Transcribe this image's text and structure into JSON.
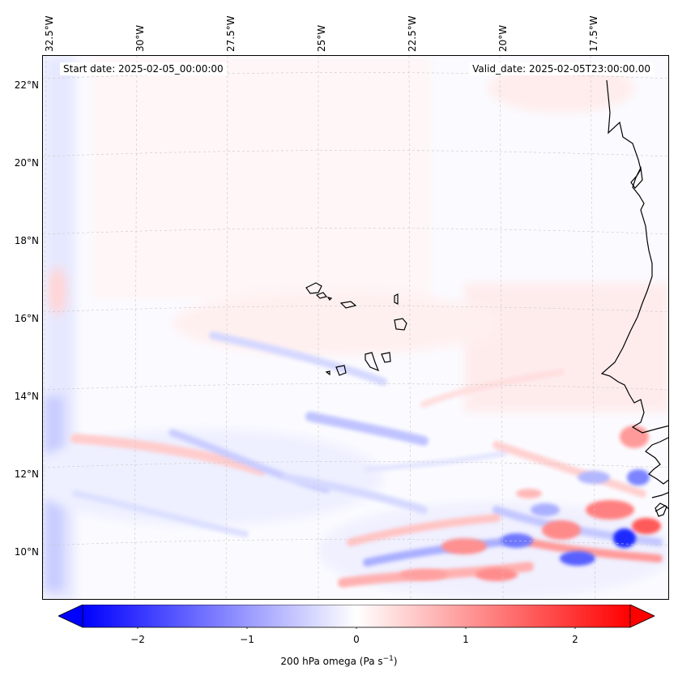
{
  "map": {
    "field": "200 hPa omega",
    "start_date_label": "Start date: 2025-02-05_00:00:00",
    "valid_date_label": "Valid_date: 2025-02-05T23:00:00.00",
    "longitude_labels": [
      "32.5°W",
      "30°W",
      "27.5°W",
      "25°W",
      "22.5°W",
      "20°W",
      "17.5°W"
    ],
    "latitude_labels": [
      "22°N",
      "20°N",
      "18°N",
      "16°N",
      "14°N",
      "12°N",
      "10°N"
    ],
    "extent": {
      "lon_min": -32.6,
      "lon_max": -15.7,
      "lat_min": 8.9,
      "lat_max": 22.7
    },
    "colors": {
      "negative": "#0000ff",
      "positive": "#ff0000",
      "zero": "#ffffff",
      "coast": "#000000",
      "grid": "#c8c8c8"
    }
  },
  "colorbar": {
    "ticks": [
      "−2",
      "−1",
      "0",
      "1",
      "2"
    ],
    "range": [
      -2.6,
      2.6
    ],
    "label_text": "200 hPa omega (Pa s",
    "label_exp": "−1",
    "label_close": ")"
  }
}
